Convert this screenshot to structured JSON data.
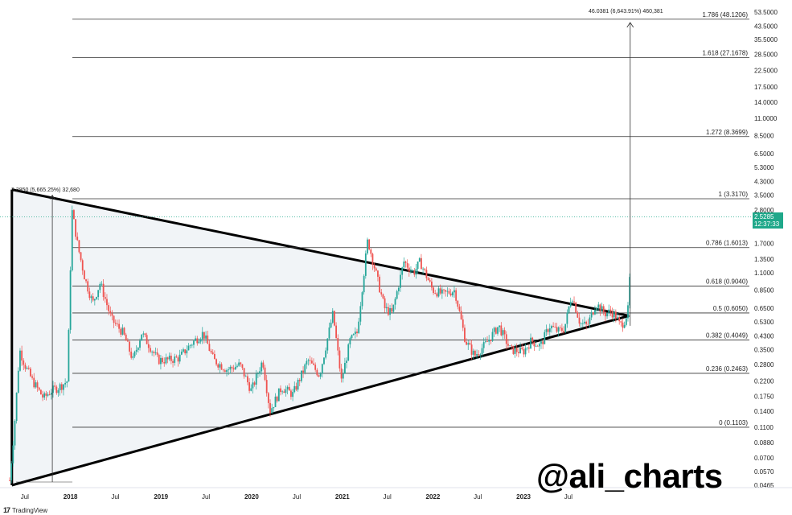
{
  "watermark": "@ali_charts",
  "brand": {
    "mark": "17",
    "name": "TradingView"
  },
  "current_price": {
    "value": 2.5285,
    "label": "2.5285",
    "countdown": "12:37:33",
    "color": "#1fa88a"
  },
  "colors": {
    "up": "#26a69a",
    "down": "#ef5350",
    "triangle_fill": "#f1f4f7",
    "lines": "#000000"
  },
  "annotations": {
    "top_measure": "46.0381 (6,643.91%) 460,381",
    "left_measure": "3.3850 (5,665.25%) 32,680"
  },
  "chart_data": {
    "type": "candlestick",
    "scale": "log",
    "ylim": [
      0.0465,
      53.5
    ],
    "xlim": [
      "2017-05-01",
      "2024-03-10"
    ],
    "y_ticks": [
      53.5,
      43.5,
      35.5,
      28.5,
      22.5,
      17.5,
      14.0,
      11.0,
      8.5,
      6.5,
      5.3,
      4.3,
      3.5,
      2.8,
      2.2,
      1.7,
      1.35,
      1.1,
      0.85,
      0.65,
      0.53,
      0.43,
      0.35,
      0.28,
      0.22,
      0.175,
      0.14,
      0.11,
      0.088,
      0.07,
      0.057,
      0.0465
    ],
    "y_tick_labels": [
      "53.5000",
      "43.5000",
      "35.5000",
      "28.5000",
      "22.5000",
      "17.5000",
      "14.0000",
      "11.0000",
      "8.5000",
      "6.5000",
      "5.3000",
      "4.3000",
      "3.5000",
      "2.8000",
      "2.2000",
      "1.7000",
      "1.3500",
      "1.1000",
      "0.8500",
      "0.6500",
      "0.5300",
      "0.4300",
      "0.3500",
      "0.2800",
      "0.2200",
      "0.1750",
      "0.1400",
      "0.1100",
      "0.0880",
      "0.0700",
      "0.0570",
      "0.0465"
    ],
    "x_ticks": [
      {
        "date": "2017-07-01",
        "label": "Jul",
        "bold": false
      },
      {
        "date": "2018-01-01",
        "label": "2018",
        "bold": true
      },
      {
        "date": "2018-07-01",
        "label": "Jul",
        "bold": false
      },
      {
        "date": "2019-01-01",
        "label": "2019",
        "bold": true
      },
      {
        "date": "2019-07-01",
        "label": "Jul",
        "bold": false
      },
      {
        "date": "2020-01-01",
        "label": "2020",
        "bold": true
      },
      {
        "date": "2020-07-01",
        "label": "Jul",
        "bold": false
      },
      {
        "date": "2021-01-01",
        "label": "2021",
        "bold": true
      },
      {
        "date": "2021-07-01",
        "label": "Jul",
        "bold": false
      },
      {
        "date": "2022-01-01",
        "label": "2022",
        "bold": true
      },
      {
        "date": "2022-07-01",
        "label": "Jul",
        "bold": false
      },
      {
        "date": "2023-01-01",
        "label": "2023",
        "bold": true
      },
      {
        "date": "2023-07-01",
        "label": "Jul",
        "bold": false
      }
    ],
    "fib_levels": [
      {
        "label": "0 (0.1103)",
        "value": 0.1103
      },
      {
        "label": "0.236 (0.2463)",
        "value": 0.2463
      },
      {
        "label": "0.382 (0.4049)",
        "value": 0.4049
      },
      {
        "label": "0.5 (0.6050)",
        "value": 0.605
      },
      {
        "label": "0.618 (0.9040)",
        "value": 0.904
      },
      {
        "label": "0.786 (1.6013)",
        "value": 1.6013
      },
      {
        "label": "1 (3.3170)",
        "value": 3.317
      },
      {
        "label": "1.272 (8.3699)",
        "value": 8.3699
      },
      {
        "label": "1.618 (27.1678)",
        "value": 27.1678
      },
      {
        "label": "1.786 (48.1206)",
        "value": 48.1206
      }
    ],
    "triangle": [
      {
        "date": "2017-05-10",
        "value": 3.8
      },
      {
        "date": "2024-03-01",
        "value": 0.58
      },
      {
        "date": "2017-05-10",
        "value": 0.0465
      }
    ],
    "price_path": [
      {
        "date": "2017-05-01",
        "value": 0.05
      },
      {
        "date": "2017-05-20",
        "value": 0.11
      },
      {
        "date": "2017-06-10",
        "value": 0.35
      },
      {
        "date": "2017-07-01",
        "value": 0.28
      },
      {
        "date": "2017-08-01",
        "value": 0.22
      },
      {
        "date": "2017-09-15",
        "value": 0.17
      },
      {
        "date": "2017-10-15",
        "value": 0.19
      },
      {
        "date": "2017-11-15",
        "value": 0.2
      },
      {
        "date": "2017-12-20",
        "value": 0.22
      },
      {
        "date": "2018-01-07",
        "value": 2.8
      },
      {
        "date": "2018-02-01",
        "value": 1.6
      },
      {
        "date": "2018-03-01",
        "value": 1.0
      },
      {
        "date": "2018-04-01",
        "value": 0.7
      },
      {
        "date": "2018-05-01",
        "value": 0.95
      },
      {
        "date": "2018-06-15",
        "value": 0.55
      },
      {
        "date": "2018-08-01",
        "value": 0.45
      },
      {
        "date": "2018-09-10",
        "value": 0.3
      },
      {
        "date": "2018-10-15",
        "value": 0.45
      },
      {
        "date": "2018-11-25",
        "value": 0.35
      },
      {
        "date": "2018-12-20",
        "value": 0.3
      },
      {
        "date": "2019-02-01",
        "value": 0.3
      },
      {
        "date": "2019-03-15",
        "value": 0.31
      },
      {
        "date": "2019-05-01",
        "value": 0.38
      },
      {
        "date": "2019-06-20",
        "value": 0.45
      },
      {
        "date": "2019-08-01",
        "value": 0.3
      },
      {
        "date": "2019-09-25",
        "value": 0.26
      },
      {
        "date": "2019-11-15",
        "value": 0.28
      },
      {
        "date": "2019-12-31",
        "value": 0.19
      },
      {
        "date": "2020-02-15",
        "value": 0.3
      },
      {
        "date": "2020-03-15",
        "value": 0.14
      },
      {
        "date": "2020-05-01",
        "value": 0.2
      },
      {
        "date": "2020-06-15",
        "value": 0.18
      },
      {
        "date": "2020-08-15",
        "value": 0.3
      },
      {
        "date": "2020-10-01",
        "value": 0.24
      },
      {
        "date": "2020-11-24",
        "value": 0.6
      },
      {
        "date": "2020-12-28",
        "value": 0.22
      },
      {
        "date": "2021-02-01",
        "value": 0.4
      },
      {
        "date": "2021-03-01",
        "value": 0.45
      },
      {
        "date": "2021-04-13",
        "value": 1.8
      },
      {
        "date": "2021-05-10",
        "value": 1.2
      },
      {
        "date": "2021-06-20",
        "value": 0.65
      },
      {
        "date": "2021-07-20",
        "value": 0.6
      },
      {
        "date": "2021-09-06",
        "value": 1.3
      },
      {
        "date": "2021-10-15",
        "value": 1.1
      },
      {
        "date": "2021-11-10",
        "value": 1.3
      },
      {
        "date": "2021-12-31",
        "value": 0.85
      },
      {
        "date": "2022-02-10",
        "value": 0.8
      },
      {
        "date": "2022-03-30",
        "value": 0.85
      },
      {
        "date": "2022-05-12",
        "value": 0.4
      },
      {
        "date": "2022-06-18",
        "value": 0.32
      },
      {
        "date": "2022-08-01",
        "value": 0.38
      },
      {
        "date": "2022-09-23",
        "value": 0.5
      },
      {
        "date": "2022-11-09",
        "value": 0.35
      },
      {
        "date": "2022-12-31",
        "value": 0.34
      },
      {
        "date": "2023-02-01",
        "value": 0.4
      },
      {
        "date": "2023-03-10",
        "value": 0.37
      },
      {
        "date": "2023-04-15",
        "value": 0.5
      },
      {
        "date": "2023-05-20",
        "value": 0.46
      },
      {
        "date": "2023-06-15",
        "value": 0.48
      },
      {
        "date": "2023-07-14",
        "value": 0.8
      },
      {
        "date": "2023-08-17",
        "value": 0.52
      },
      {
        "date": "2023-09-15",
        "value": 0.5
      },
      {
        "date": "2023-10-20",
        "value": 0.7
      },
      {
        "date": "2023-11-25",
        "value": 0.6
      },
      {
        "date": "2023-12-20",
        "value": 0.62
      },
      {
        "date": "2024-01-10",
        "value": 0.57
      },
      {
        "date": "2024-01-25",
        "value": 0.5
      },
      {
        "date": "2024-02-10",
        "value": 0.53
      },
      {
        "date": "2024-02-25",
        "value": 0.62
      },
      {
        "date": "2024-03-01",
        "value": 0.7
      },
      {
        "date": "2024-03-04",
        "value": 1.0
      },
      {
        "date": "2024-03-06",
        "value": 1.2
      },
      {
        "date": "2024-03-08",
        "value": 1.7
      },
      {
        "date": "2024-03-10",
        "value": 2.5
      }
    ],
    "last_price": 2.5285
  }
}
